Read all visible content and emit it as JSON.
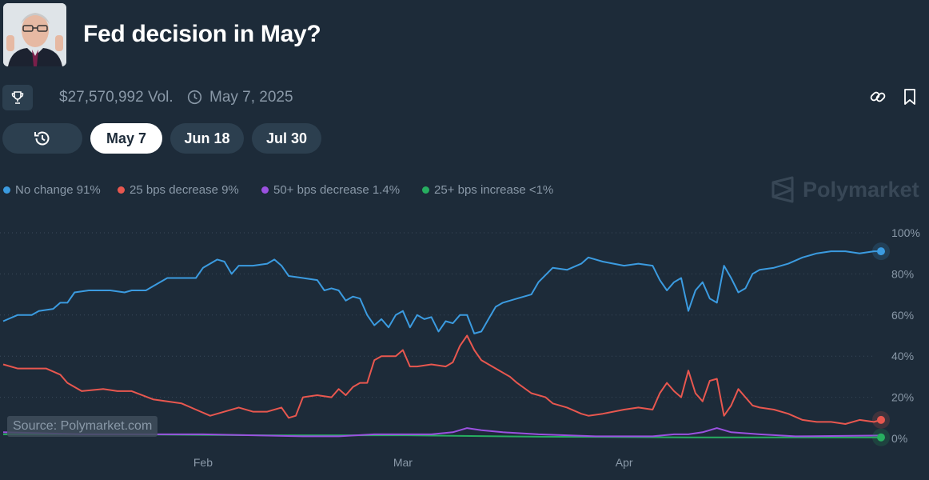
{
  "header": {
    "title": "Fed decision in May?",
    "volume": "$27,570,992 Vol.",
    "date": "May 7, 2025"
  },
  "pills": [
    "May 7",
    "Jun 18",
    "Jul 30"
  ],
  "brand": "Polymarket",
  "source": "Source: Polymarket.com",
  "colors": {
    "blue": "#3b9be0",
    "red": "#e8574f",
    "purple": "#9b51e0",
    "green": "#27ae60"
  },
  "chart_data": {
    "type": "line",
    "ylim": [
      0,
      100
    ],
    "yticks": [
      "100%",
      "80%",
      "60%",
      "40%",
      "20%",
      "0%"
    ],
    "xticks": [
      {
        "label": "Feb",
        "x": "2025-02-01"
      },
      {
        "label": "Mar",
        "x": "2025-03-01"
      },
      {
        "label": "Apr",
        "x": "2025-04-01"
      }
    ],
    "x_range": [
      "2025-01-04",
      "2025-05-07"
    ],
    "series": [
      {
        "name": "No change",
        "legend": "No change 91%",
        "color": "#3b9be0",
        "points": [
          [
            "2025-01-04",
            57
          ],
          [
            "2025-01-06",
            60
          ],
          [
            "2025-01-08",
            60
          ],
          [
            "2025-01-09",
            62
          ],
          [
            "2025-01-11",
            63
          ],
          [
            "2025-01-12",
            66
          ],
          [
            "2025-01-13",
            66
          ],
          [
            "2025-01-14",
            71
          ],
          [
            "2025-01-16",
            72
          ],
          [
            "2025-01-19",
            72
          ],
          [
            "2025-01-21",
            71
          ],
          [
            "2025-01-22",
            72
          ],
          [
            "2025-01-24",
            72
          ],
          [
            "2025-01-25",
            74
          ],
          [
            "2025-01-27",
            78
          ],
          [
            "2025-01-29",
            78
          ],
          [
            "2025-01-31",
            78
          ],
          [
            "2025-02-01",
            83
          ],
          [
            "2025-02-03",
            87
          ],
          [
            "2025-02-04",
            86
          ],
          [
            "2025-02-05",
            80
          ],
          [
            "2025-02-06",
            84
          ],
          [
            "2025-02-08",
            84
          ],
          [
            "2025-02-10",
            85
          ],
          [
            "2025-02-11",
            87
          ],
          [
            "2025-02-12",
            84
          ],
          [
            "2025-02-13",
            79
          ],
          [
            "2025-02-15",
            78
          ],
          [
            "2025-02-17",
            77
          ],
          [
            "2025-02-18",
            72
          ],
          [
            "2025-02-19",
            73
          ],
          [
            "2025-02-20",
            72
          ],
          [
            "2025-02-21",
            67
          ],
          [
            "2025-02-22",
            69
          ],
          [
            "2025-02-23",
            68
          ],
          [
            "2025-02-24",
            60
          ],
          [
            "2025-02-25",
            55
          ],
          [
            "2025-02-26",
            58
          ],
          [
            "2025-02-27",
            54
          ],
          [
            "2025-02-28",
            60
          ],
          [
            "2025-03-01",
            62
          ],
          [
            "2025-03-02",
            54
          ],
          [
            "2025-03-03",
            60
          ],
          [
            "2025-03-04",
            58
          ],
          [
            "2025-03-05",
            59
          ],
          [
            "2025-03-06",
            52
          ],
          [
            "2025-03-07",
            57
          ],
          [
            "2025-03-08",
            56
          ],
          [
            "2025-03-09",
            60
          ],
          [
            "2025-03-10",
            60
          ],
          [
            "2025-03-11",
            51
          ],
          [
            "2025-03-12",
            52
          ],
          [
            "2025-03-13",
            58
          ],
          [
            "2025-03-14",
            64
          ],
          [
            "2025-03-15",
            66
          ],
          [
            "2025-03-17",
            68
          ],
          [
            "2025-03-19",
            70
          ],
          [
            "2025-03-20",
            76
          ],
          [
            "2025-03-22",
            83
          ],
          [
            "2025-03-24",
            82
          ],
          [
            "2025-03-26",
            85
          ],
          [
            "2025-03-27",
            88
          ],
          [
            "2025-03-29",
            86
          ],
          [
            "2025-04-01",
            84
          ],
          [
            "2025-04-03",
            85
          ],
          [
            "2025-04-05",
            84
          ],
          [
            "2025-04-06",
            77
          ],
          [
            "2025-04-07",
            72
          ],
          [
            "2025-04-08",
            76
          ],
          [
            "2025-04-09",
            78
          ],
          [
            "2025-04-10",
            62
          ],
          [
            "2025-04-11",
            72
          ],
          [
            "2025-04-12",
            76
          ],
          [
            "2025-04-13",
            68
          ],
          [
            "2025-04-14",
            66
          ],
          [
            "2025-04-15",
            84
          ],
          [
            "2025-04-16",
            78
          ],
          [
            "2025-04-17",
            71
          ],
          [
            "2025-04-18",
            73
          ],
          [
            "2025-04-19",
            80
          ],
          [
            "2025-04-20",
            82
          ],
          [
            "2025-04-22",
            83
          ],
          [
            "2025-04-24",
            85
          ],
          [
            "2025-04-26",
            88
          ],
          [
            "2025-04-28",
            90
          ],
          [
            "2025-04-30",
            91
          ],
          [
            "2025-05-02",
            91
          ],
          [
            "2025-05-04",
            90
          ],
          [
            "2025-05-06",
            91
          ],
          [
            "2025-05-07",
            91
          ]
        ]
      },
      {
        "name": "25 bps decrease",
        "legend": "25 bps decrease 9%",
        "color": "#e8574f",
        "points": [
          [
            "2025-01-04",
            36
          ],
          [
            "2025-01-06",
            34
          ],
          [
            "2025-01-10",
            34
          ],
          [
            "2025-01-12",
            31
          ],
          [
            "2025-01-13",
            27
          ],
          [
            "2025-01-15",
            23
          ],
          [
            "2025-01-18",
            24
          ],
          [
            "2025-01-20",
            23
          ],
          [
            "2025-01-22",
            23
          ],
          [
            "2025-01-25",
            19
          ],
          [
            "2025-01-27",
            18
          ],
          [
            "2025-01-29",
            17
          ],
          [
            "2025-01-31",
            14
          ],
          [
            "2025-02-02",
            11
          ],
          [
            "2025-02-04",
            13
          ],
          [
            "2025-02-06",
            15
          ],
          [
            "2025-02-08",
            13
          ],
          [
            "2025-02-10",
            13
          ],
          [
            "2025-02-12",
            15
          ],
          [
            "2025-02-13",
            10
          ],
          [
            "2025-02-14",
            11
          ],
          [
            "2025-02-15",
            20
          ],
          [
            "2025-02-17",
            21
          ],
          [
            "2025-02-19",
            20
          ],
          [
            "2025-02-20",
            24
          ],
          [
            "2025-02-21",
            21
          ],
          [
            "2025-02-22",
            25
          ],
          [
            "2025-02-23",
            27
          ],
          [
            "2025-02-24",
            27
          ],
          [
            "2025-02-25",
            38
          ],
          [
            "2025-02-26",
            40
          ],
          [
            "2025-02-28",
            40
          ],
          [
            "2025-03-01",
            43
          ],
          [
            "2025-03-02",
            35
          ],
          [
            "2025-03-03",
            35
          ],
          [
            "2025-03-05",
            36
          ],
          [
            "2025-03-07",
            35
          ],
          [
            "2025-03-08",
            37
          ],
          [
            "2025-03-09",
            45
          ],
          [
            "2025-03-10",
            50
          ],
          [
            "2025-03-11",
            43
          ],
          [
            "2025-03-12",
            38
          ],
          [
            "2025-03-14",
            34
          ],
          [
            "2025-03-16",
            30
          ],
          [
            "2025-03-17",
            27
          ],
          [
            "2025-03-19",
            22
          ],
          [
            "2025-03-21",
            20
          ],
          [
            "2025-03-22",
            17
          ],
          [
            "2025-03-24",
            15
          ],
          [
            "2025-03-26",
            12
          ],
          [
            "2025-03-27",
            11
          ],
          [
            "2025-03-29",
            12
          ],
          [
            "2025-04-01",
            14
          ],
          [
            "2025-04-03",
            15
          ],
          [
            "2025-04-05",
            14
          ],
          [
            "2025-04-06",
            22
          ],
          [
            "2025-04-07",
            27
          ],
          [
            "2025-04-08",
            23
          ],
          [
            "2025-04-09",
            20
          ],
          [
            "2025-04-10",
            33
          ],
          [
            "2025-04-11",
            22
          ],
          [
            "2025-04-12",
            18
          ],
          [
            "2025-04-13",
            28
          ],
          [
            "2025-04-14",
            29
          ],
          [
            "2025-04-15",
            11
          ],
          [
            "2025-04-16",
            16
          ],
          [
            "2025-04-17",
            24
          ],
          [
            "2025-04-18",
            20
          ],
          [
            "2025-04-19",
            16
          ],
          [
            "2025-04-20",
            15
          ],
          [
            "2025-04-22",
            14
          ],
          [
            "2025-04-24",
            12
          ],
          [
            "2025-04-26",
            9
          ],
          [
            "2025-04-28",
            8
          ],
          [
            "2025-04-30",
            8
          ],
          [
            "2025-05-02",
            7
          ],
          [
            "2025-05-04",
            9
          ],
          [
            "2025-05-06",
            8
          ],
          [
            "2025-05-07",
            9
          ]
        ]
      },
      {
        "name": "50+ bps decrease",
        "legend": "50+ bps decrease 1.4%",
        "color": "#9b51e0",
        "points": [
          [
            "2025-01-04",
            3
          ],
          [
            "2025-01-15",
            2
          ],
          [
            "2025-02-01",
            2
          ],
          [
            "2025-02-15",
            1
          ],
          [
            "2025-02-20",
            1
          ],
          [
            "2025-02-25",
            2
          ],
          [
            "2025-03-05",
            2
          ],
          [
            "2025-03-08",
            3
          ],
          [
            "2025-03-10",
            5
          ],
          [
            "2025-03-12",
            4
          ],
          [
            "2025-03-15",
            3
          ],
          [
            "2025-03-20",
            2
          ],
          [
            "2025-03-28",
            1
          ],
          [
            "2025-04-05",
            1
          ],
          [
            "2025-04-08",
            2
          ],
          [
            "2025-04-10",
            2
          ],
          [
            "2025-04-12",
            3
          ],
          [
            "2025-04-14",
            5
          ],
          [
            "2025-04-16",
            3
          ],
          [
            "2025-04-20",
            2
          ],
          [
            "2025-04-25",
            1
          ],
          [
            "2025-05-07",
            1.4
          ]
        ]
      },
      {
        "name": "25+ bps increase",
        "legend": "25+ bps increase <1%",
        "color": "#27ae60",
        "points": [
          [
            "2025-01-04",
            2
          ],
          [
            "2025-01-20",
            2
          ],
          [
            "2025-02-10",
            1.5
          ],
          [
            "2025-03-01",
            1.5
          ],
          [
            "2025-03-20",
            0.8
          ],
          [
            "2025-04-10",
            0.5
          ],
          [
            "2025-05-07",
            0.5
          ]
        ]
      }
    ]
  }
}
